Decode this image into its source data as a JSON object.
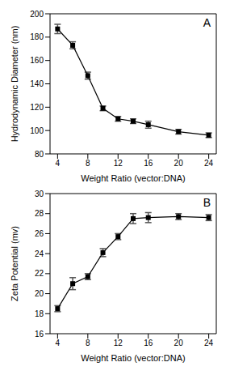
{
  "chart_data": [
    {
      "type": "line",
      "annotation": "A",
      "x_label": "Weight Ratio (vector:DNA)",
      "y_label": "Hydrodynamic Diameter (nm)",
      "x": [
        4,
        6,
        8,
        10,
        12,
        14,
        16,
        20,
        24
      ],
      "values": [
        187,
        173,
        147,
        119,
        110,
        108,
        105,
        99,
        96
      ],
      "errors": [
        4,
        3,
        3,
        2,
        2,
        2,
        3,
        2,
        2
      ],
      "color": "#000000",
      "marker": "square",
      "grid": false,
      "xlim": [
        3,
        25
      ],
      "xticks": [
        4,
        8,
        12,
        16,
        20,
        24
      ],
      "ylim": [
        80,
        200
      ],
      "yticks": [
        80,
        100,
        120,
        140,
        160,
        180,
        200
      ]
    },
    {
      "type": "line",
      "annotation": "B",
      "x_label": "Weight Ratio (vector:DNA)",
      "y_label": "Zeta Potential (mv)",
      "x": [
        4,
        6,
        8,
        10,
        12,
        14,
        16,
        20,
        24
      ],
      "values": [
        18.5,
        21.0,
        21.7,
        24.1,
        25.7,
        27.5,
        27.6,
        27.7,
        27.6
      ],
      "errors": [
        0.3,
        0.6,
        0.3,
        0.4,
        0.3,
        0.5,
        0.5,
        0.3,
        0.3
      ],
      "color": "#000000",
      "marker": "square",
      "grid": false,
      "xlim": [
        3,
        25
      ],
      "xticks": [
        4,
        8,
        12,
        16,
        20,
        24
      ],
      "ylim": [
        16,
        30
      ],
      "yticks": [
        16,
        18,
        20,
        22,
        24,
        26,
        28,
        30
      ]
    }
  ]
}
